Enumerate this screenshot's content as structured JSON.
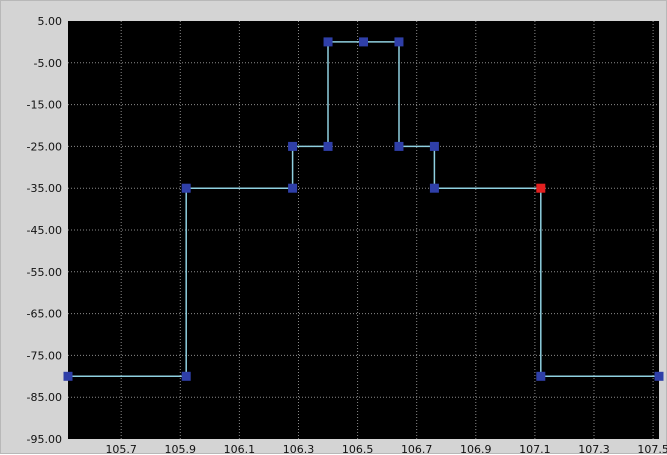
{
  "chart_data": {
    "type": "line",
    "line_shape": "step",
    "title": "",
    "xlabel": "",
    "ylabel": "",
    "xlim": [
      105.52,
      107.52
    ],
    "ylim": [
      -95,
      5
    ],
    "x_ticks": [
      {
        "value": 105.7,
        "label": "105.7"
      },
      {
        "value": 105.9,
        "label": "105.9"
      },
      {
        "value": 106.1,
        "label": "106.1"
      },
      {
        "value": 106.3,
        "label": "106.3"
      },
      {
        "value": 106.5,
        "label": "106.5"
      },
      {
        "value": 106.7,
        "label": "106.7"
      },
      {
        "value": 106.9,
        "label": "106.9"
      },
      {
        "value": 107.1,
        "label": "107.1"
      },
      {
        "value": 107.3,
        "label": "107.3"
      },
      {
        "value": 107.5,
        "label": "107.5"
      }
    ],
    "y_ticks": [
      {
        "value": 5,
        "label": "5.00"
      },
      {
        "value": -5,
        "label": "-5.00"
      },
      {
        "value": -15,
        "label": "-15.00"
      },
      {
        "value": -25,
        "label": "-25.00"
      },
      {
        "value": -35,
        "label": "-35.00"
      },
      {
        "value": -45,
        "label": "-45.00"
      },
      {
        "value": -55,
        "label": "-55.00"
      },
      {
        "value": -65,
        "label": "-65.00"
      },
      {
        "value": -75,
        "label": "-75.00"
      },
      {
        "value": -85,
        "label": "-85.00"
      },
      {
        "value": -95,
        "label": "-95.00"
      }
    ],
    "grid": true,
    "series": [
      {
        "points": [
          {
            "x": 105.52,
            "y": -80
          },
          {
            "x": 105.92,
            "y": -80
          },
          {
            "x": 105.92,
            "y": -35
          },
          {
            "x": 106.28,
            "y": -35
          },
          {
            "x": 106.28,
            "y": -25
          },
          {
            "x": 106.4,
            "y": -25
          },
          {
            "x": 106.4,
            "y": 0
          },
          {
            "x": 106.52,
            "y": 0
          },
          {
            "x": 106.64,
            "y": 0
          },
          {
            "x": 106.64,
            "y": -25
          },
          {
            "x": 106.76,
            "y": -25
          },
          {
            "x": 106.76,
            "y": -35
          },
          {
            "x": 107.12,
            "y": -35,
            "highlight": true
          },
          {
            "x": 107.12,
            "y": -80
          },
          {
            "x": 107.52,
            "y": -80
          }
        ]
      }
    ],
    "colors": {
      "plot_background": "#000000",
      "frame_background": "#d4d4d4",
      "grid": "#8a8a8a",
      "line": "#8fd0e0",
      "marker": "#2f3fa8",
      "highlight_marker": "#e32020"
    }
  }
}
